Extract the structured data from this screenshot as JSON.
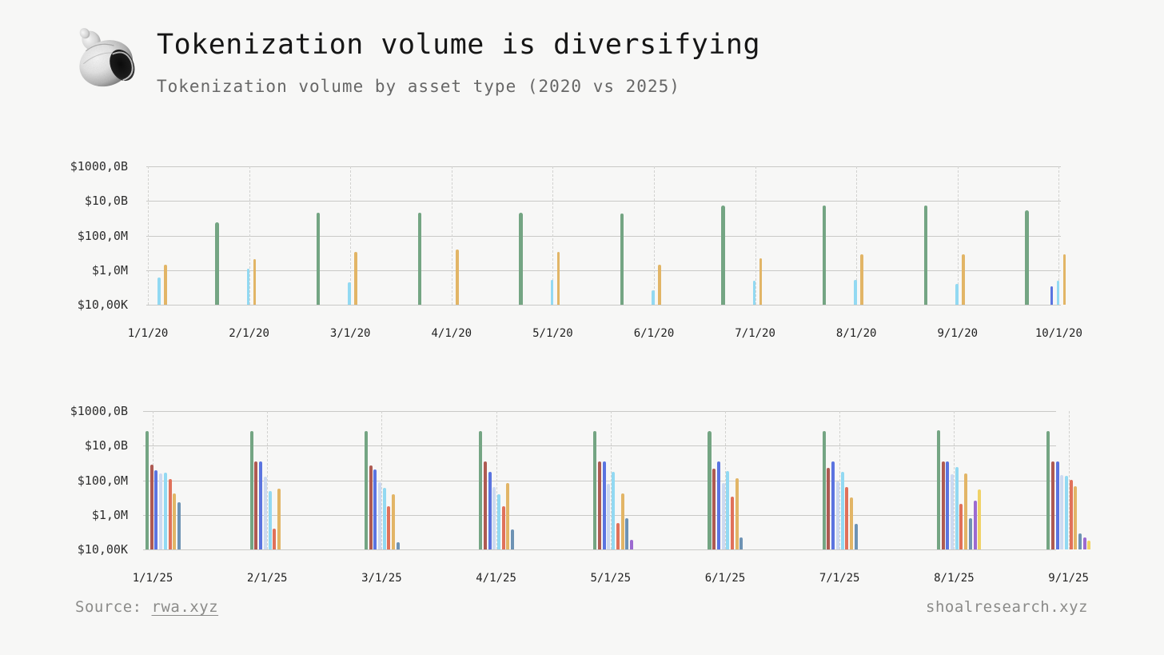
{
  "header": {
    "title": "Tokenization volume is diversifying",
    "subtitle": "Tokenization volume by asset type (2020 vs 2025)",
    "logo": "shell-stipple-illustration"
  },
  "footer": {
    "source_label": "Source: ",
    "source_link": "rwa.xyz",
    "site": "shoalresearch.xyz"
  },
  "palette": {
    "background": "#f7f7f6",
    "title_text": "#161616",
    "subtitle_text": "#676767",
    "axis_text": "#2e2e2e",
    "gridline": "#c9c9c7",
    "dashed_gridline": "#d2d2d0",
    "footer_text": "#8b8b89"
  },
  "chart_data": [
    {
      "type": "bar",
      "title": "Tokenization volume by asset type - 2020",
      "y_scale": "log",
      "ylim": [
        10000,
        1000000000000
      ],
      "y_ticks": [
        {
          "label": "$1000,0B",
          "value": 1000000000000.0
        },
        {
          "label": "$10,0B",
          "value": 10000000000.0
        },
        {
          "label": "$100,0M",
          "value": 100000000.0
        },
        {
          "label": "$1,0M",
          "value": 1000000.0
        },
        {
          "label": "$10,00K",
          "value": 10000.0
        }
      ],
      "grid": {
        "horizontal": "solid",
        "vertical": "dashed"
      },
      "legend": "none",
      "categories": [
        "1/1/20",
        "2/1/20",
        "3/1/20",
        "4/1/20",
        "5/1/20",
        "6/1/20",
        "7/1/20",
        "8/1/20",
        "9/1/20",
        "10/1/20"
      ],
      "series": [
        {
          "name": "sea-green",
          "color": "#74a583",
          "values": [
            null,
            600000000.0,
            2000000000.0,
            2100000000.0,
            2100000000.0,
            1900000000.0,
            5500000000.0,
            5500000000.0,
            5500000000.0,
            3000000000.0
          ]
        },
        {
          "name": "royal-blue",
          "color": "#5b74e0",
          "values": [
            null,
            null,
            null,
            null,
            null,
            null,
            null,
            null,
            null,
            120000.0
          ]
        },
        {
          "name": "sky-blue",
          "color": "#92d9f2",
          "values": [
            400000.0,
            1200000.0,
            200000.0,
            null,
            280000.0,
            70000.0,
            250000.0,
            280000.0,
            160000.0,
            250000.0
          ]
        },
        {
          "name": "gold",
          "color": "#e2b566",
          "values": [
            2000000.0,
            4500000.0,
            12000000.0,
            16000000.0,
            11000000.0,
            2200000.0,
            5000000.0,
            8000000.0,
            8000000.0,
            8500000.0
          ]
        }
      ]
    },
    {
      "type": "bar",
      "title": "Tokenization volume by asset type - 2025",
      "y_scale": "log",
      "ylim": [
        10000,
        1000000000000
      ],
      "y_ticks": [
        {
          "label": "$1000,0B",
          "value": 1000000000000.0
        },
        {
          "label": "$10,0B",
          "value": 10000000000.0
        },
        {
          "label": "$100,0M",
          "value": 100000000.0
        },
        {
          "label": "$1,0M",
          "value": 1000000.0
        },
        {
          "label": "$10,00K",
          "value": 10000.0
        }
      ],
      "grid": {
        "horizontal": "solid",
        "vertical": "dashed"
      },
      "legend": "none",
      "categories": [
        "1/1/25",
        "2/1/25",
        "3/1/25",
        "4/1/25",
        "5/1/25",
        "6/1/25",
        "7/1/25",
        "8/1/25",
        "9/1/25"
      ],
      "series": [
        {
          "name": "sea-green",
          "color": "#74a583",
          "values": [
            68000000000.0,
            70000000000.0,
            68000000000.0,
            68000000000.0,
            68000000000.0,
            68000000000.0,
            69000000000.0,
            75000000000.0,
            70000000000.0
          ]
        },
        {
          "name": "brick-red",
          "color": "#ae5a52",
          "values": [
            800000000.0,
            1300000000.0,
            750000000.0,
            1300000000.0,
            1200000000.0,
            490000000.0,
            530000000.0,
            1300000000.0,
            1300000000.0
          ]
        },
        {
          "name": "royal-blue",
          "color": "#5b74e0",
          "values": [
            380000000.0,
            1300000000.0,
            410000000.0,
            310000000.0,
            1300000000.0,
            1300000000.0,
            1300000000.0,
            1300000000.0,
            1300000000.0
          ]
        },
        {
          "name": "periwinkle",
          "color": "#ccd9f0",
          "values": [
            240000000.0,
            170000000.0,
            80000000.0,
            40000000.0,
            65000000.0,
            72000000.0,
            83000000.0,
            230000000.0,
            210000000.0
          ]
        },
        {
          "name": "sky-blue",
          "color": "#92d9f2",
          "values": [
            280000000.0,
            24000000.0,
            37000000.0,
            15000000.0,
            310000000.0,
            330000000.0,
            310000000.0,
            590000000.0,
            180000000.0
          ]
        },
        {
          "name": "coral",
          "color": "#e0715a",
          "values": [
            120000000.0,
            160000.0,
            3300000.0,
            3300000.0,
            330000.0,
            11000000.0,
            41000000.0,
            4400000.0,
            110000000.0
          ]
        },
        {
          "name": "gold",
          "color": "#e2b566",
          "values": [
            17000000.0,
            35000000.0,
            15000000.0,
            68000000.0,
            18000000.0,
            130000000.0,
            10000000.0,
            240000000.0,
            44000000.0
          ]
        },
        {
          "name": "steel-blue",
          "color": "#6e93b4",
          "values": [
            5200000.0,
            null,
            28000.0,
            150000.0,
            680000.0,
            52000.0,
            310000.0,
            630000.0,
            84000.0
          ]
        },
        {
          "name": "purple",
          "color": "#9c6ad0",
          "values": [
            null,
            null,
            null,
            null,
            38000.0,
            null,
            null,
            7000000.0,
            52000.0
          ]
        },
        {
          "name": "yellow",
          "color": "#f0d266",
          "values": [
            null,
            null,
            null,
            null,
            null,
            null,
            null,
            29000000.0,
            34000.0
          ]
        }
      ]
    }
  ]
}
